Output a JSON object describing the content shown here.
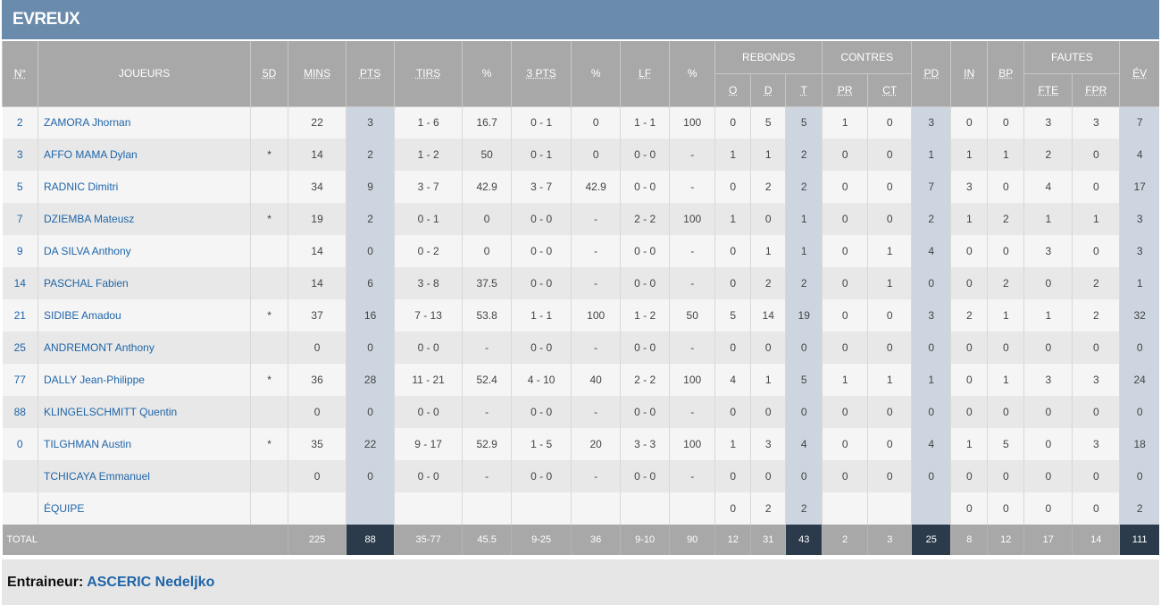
{
  "team": {
    "name": "EVREUX"
  },
  "headers": {
    "num": "N°",
    "players": "JOUEURS",
    "five": "5D",
    "mins": "MINS",
    "pts": "PTS",
    "tirs": "TIRS",
    "pct1": "%",
    "three": "3 PTS",
    "pct2": "%",
    "lf": "LF",
    "pct3": "%",
    "rebonds": "REBONDS",
    "contres": "CONTRES",
    "pd": "PD",
    "in": "IN",
    "bp": "BP",
    "fautes": "FAUTES",
    "ev": "ÉV",
    "o": "O",
    "d": "D",
    "t": "T",
    "pr": "PR",
    "ct": "CT",
    "fte": "FTE",
    "fpr": "FPR"
  },
  "players": [
    {
      "num": "2",
      "name": "ZAMORA Jhornan",
      "five": "",
      "mins": "22",
      "pts": "3",
      "tirs": "1 - 6",
      "tirs_pct": "16.7",
      "three": "0 - 1",
      "three_pct": "0",
      "lf": "1 - 1",
      "lf_pct": "100",
      "o": "0",
      "d": "5",
      "t": "5",
      "pr": "1",
      "ct": "0",
      "pd": "3",
      "in": "0",
      "bp": "0",
      "fte": "3",
      "fpr": "3",
      "ev": "7"
    },
    {
      "num": "3",
      "name": "AFFO MAMA Dylan",
      "five": "*",
      "mins": "14",
      "pts": "2",
      "tirs": "1 - 2",
      "tirs_pct": "50",
      "three": "0 - 1",
      "three_pct": "0",
      "lf": "0 - 0",
      "lf_pct": "-",
      "o": "1",
      "d": "1",
      "t": "2",
      "pr": "0",
      "ct": "0",
      "pd": "1",
      "in": "1",
      "bp": "1",
      "fte": "2",
      "fpr": "0",
      "ev": "4"
    },
    {
      "num": "5",
      "name": "RADNIC Dimitri",
      "five": "",
      "mins": "34",
      "pts": "9",
      "tirs": "3 - 7",
      "tirs_pct": "42.9",
      "three": "3 - 7",
      "three_pct": "42.9",
      "lf": "0 - 0",
      "lf_pct": "-",
      "o": "0",
      "d": "2",
      "t": "2",
      "pr": "0",
      "ct": "0",
      "pd": "7",
      "in": "3",
      "bp": "0",
      "fte": "4",
      "fpr": "0",
      "ev": "17"
    },
    {
      "num": "7",
      "name": "DZIEMBA Mateusz",
      "five": "*",
      "mins": "19",
      "pts": "2",
      "tirs": "0 - 1",
      "tirs_pct": "0",
      "three": "0 - 0",
      "three_pct": "-",
      "lf": "2 - 2",
      "lf_pct": "100",
      "o": "1",
      "d": "0",
      "t": "1",
      "pr": "0",
      "ct": "0",
      "pd": "2",
      "in": "1",
      "bp": "2",
      "fte": "1",
      "fpr": "1",
      "ev": "3"
    },
    {
      "num": "9",
      "name": "DA SILVA Anthony",
      "five": "",
      "mins": "14",
      "pts": "0",
      "tirs": "0 - 2",
      "tirs_pct": "0",
      "three": "0 - 0",
      "three_pct": "-",
      "lf": "0 - 0",
      "lf_pct": "-",
      "o": "0",
      "d": "1",
      "t": "1",
      "pr": "0",
      "ct": "1",
      "pd": "4",
      "in": "0",
      "bp": "0",
      "fte": "3",
      "fpr": "0",
      "ev": "3"
    },
    {
      "num": "14",
      "name": "PASCHAL Fabien",
      "five": "",
      "mins": "14",
      "pts": "6",
      "tirs": "3 - 8",
      "tirs_pct": "37.5",
      "three": "0 - 0",
      "three_pct": "-",
      "lf": "0 - 0",
      "lf_pct": "-",
      "o": "0",
      "d": "2",
      "t": "2",
      "pr": "0",
      "ct": "1",
      "pd": "0",
      "in": "0",
      "bp": "2",
      "fte": "0",
      "fpr": "2",
      "ev": "1"
    },
    {
      "num": "21",
      "name": "SIDIBE Amadou",
      "five": "*",
      "mins": "37",
      "pts": "16",
      "tirs": "7 - 13",
      "tirs_pct": "53.8",
      "three": "1 - 1",
      "three_pct": "100",
      "lf": "1 - 2",
      "lf_pct": "50",
      "o": "5",
      "d": "14",
      "t": "19",
      "pr": "0",
      "ct": "0",
      "pd": "3",
      "in": "2",
      "bp": "1",
      "fte": "1",
      "fpr": "2",
      "ev": "32"
    },
    {
      "num": "25",
      "name": "ANDREMONT Anthony",
      "five": "",
      "mins": "0",
      "pts": "0",
      "tirs": "0 - 0",
      "tirs_pct": "-",
      "three": "0 - 0",
      "three_pct": "-",
      "lf": "0 - 0",
      "lf_pct": "-",
      "o": "0",
      "d": "0",
      "t": "0",
      "pr": "0",
      "ct": "0",
      "pd": "0",
      "in": "0",
      "bp": "0",
      "fte": "0",
      "fpr": "0",
      "ev": "0"
    },
    {
      "num": "77",
      "name": "DALLY Jean-Philippe",
      "five": "*",
      "mins": "36",
      "pts": "28",
      "tirs": "11 - 21",
      "tirs_pct": "52.4",
      "three": "4 - 10",
      "three_pct": "40",
      "lf": "2 - 2",
      "lf_pct": "100",
      "o": "4",
      "d": "1",
      "t": "5",
      "pr": "1",
      "ct": "1",
      "pd": "1",
      "in": "0",
      "bp": "1",
      "fte": "3",
      "fpr": "3",
      "ev": "24"
    },
    {
      "num": "88",
      "name": "KLINGELSCHMITT Quentin",
      "five": "",
      "mins": "0",
      "pts": "0",
      "tirs": "0 - 0",
      "tirs_pct": "-",
      "three": "0 - 0",
      "three_pct": "-",
      "lf": "0 - 0",
      "lf_pct": "-",
      "o": "0",
      "d": "0",
      "t": "0",
      "pr": "0",
      "ct": "0",
      "pd": "0",
      "in": "0",
      "bp": "0",
      "fte": "0",
      "fpr": "0",
      "ev": "0"
    },
    {
      "num": "0",
      "name": "TILGHMAN Austin",
      "five": "*",
      "mins": "35",
      "pts": "22",
      "tirs": "9 - 17",
      "tirs_pct": "52.9",
      "three": "1 - 5",
      "three_pct": "20",
      "lf": "3 - 3",
      "lf_pct": "100",
      "o": "1",
      "d": "3",
      "t": "4",
      "pr": "0",
      "ct": "0",
      "pd": "4",
      "in": "1",
      "bp": "5",
      "fte": "0",
      "fpr": "3",
      "ev": "18"
    },
    {
      "num": "",
      "name": "TCHICAYA Emmanuel",
      "five": "",
      "mins": "0",
      "pts": "0",
      "tirs": "0 - 0",
      "tirs_pct": "-",
      "three": "0 - 0",
      "three_pct": "-",
      "lf": "0 - 0",
      "lf_pct": "-",
      "o": "0",
      "d": "0",
      "t": "0",
      "pr": "0",
      "ct": "0",
      "pd": "0",
      "in": "0",
      "bp": "0",
      "fte": "0",
      "fpr": "0",
      "ev": "0"
    },
    {
      "num": "",
      "name": "ÉQUIPE",
      "five": "",
      "mins": "",
      "pts": "",
      "tirs": "",
      "tirs_pct": "",
      "three": "",
      "three_pct": "",
      "lf": "",
      "lf_pct": "",
      "o": "0",
      "d": "2",
      "t": "2",
      "pr": "",
      "ct": "",
      "pd": "",
      "in": "0",
      "bp": "0",
      "fte": "0",
      "fpr": "0",
      "ev": "2"
    }
  ],
  "total": {
    "label": "TOTAL",
    "mins": "225",
    "pts": "88",
    "tirs": "35-77",
    "tirs_pct": "45.5",
    "three": "9-25",
    "three_pct": "36",
    "lf": "9-10",
    "lf_pct": "90",
    "o": "12",
    "d": "31",
    "t": "43",
    "pr": "2",
    "ct": "3",
    "pd": "25",
    "in": "8",
    "bp": "12",
    "fte": "17",
    "fpr": "14",
    "ev": "111"
  },
  "coach": {
    "label": "Entraineur: ",
    "name": "ASCERIC Nedeljko"
  }
}
